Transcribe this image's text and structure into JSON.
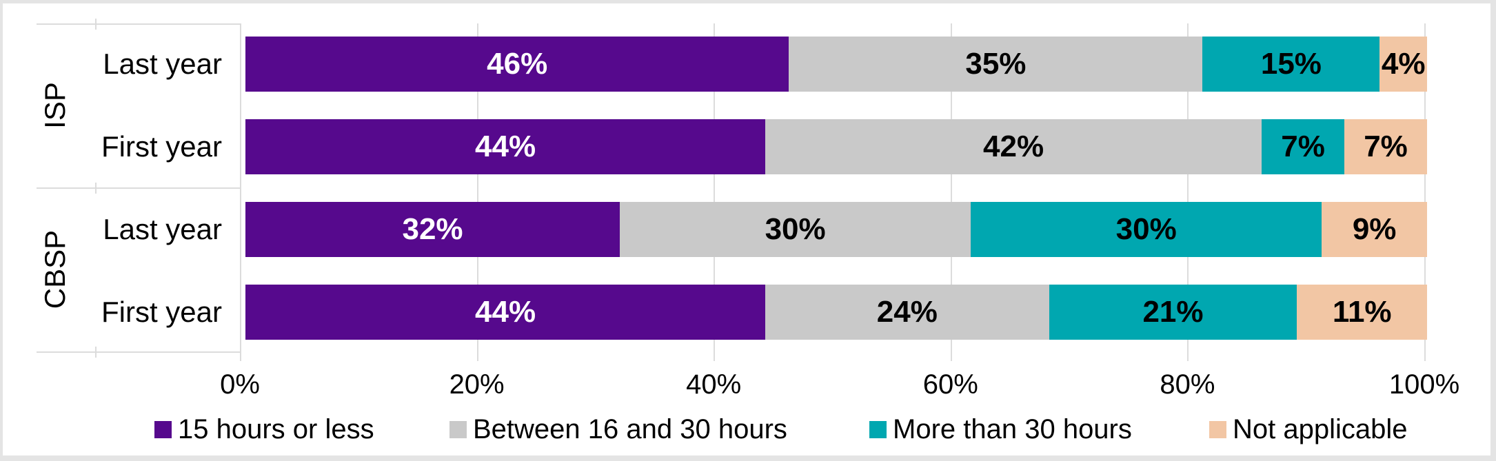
{
  "chart_data": {
    "type": "bar",
    "variant": "horizontal-stacked-100",
    "title": "",
    "xlabel": "",
    "ylabel": "",
    "x_axis": {
      "tick_labels": [
        "0%",
        "20%",
        "40%",
        "60%",
        "80%",
        "100%"
      ],
      "range": [
        0,
        100
      ],
      "gridlines": true
    },
    "legend_position": "bottom",
    "series": [
      {
        "name": "15 hours or less",
        "color": "#56098d",
        "label_color": "#ffffff"
      },
      {
        "name": "Between 16 and 30 hours",
        "color": "#c9c9c9",
        "label_color": "#000000"
      },
      {
        "name": "More than 30 hours",
        "color": "#00a7b0",
        "label_color": "#000000"
      },
      {
        "name": "Not applicable",
        "color": "#f2c6a4",
        "label_color": "#000000"
      }
    ],
    "groups": [
      {
        "label": "ISP",
        "rows": [
          {
            "label": "Last year",
            "values": [
              46,
              35,
              15,
              4
            ],
            "value_labels": [
              "46%",
              "35%",
              "15%",
              "4%"
            ]
          },
          {
            "label": "First year",
            "values": [
              44,
              42,
              7,
              7
            ],
            "value_labels": [
              "44%",
              "42%",
              "7%",
              "7%"
            ]
          }
        ]
      },
      {
        "label": "CBSP",
        "rows": [
          {
            "label": "Last year",
            "values": [
              32,
              30,
              30,
              9
            ],
            "value_labels": [
              "32%",
              "30%",
              "30%",
              "9%"
            ]
          },
          {
            "label": "First year",
            "values": [
              44,
              24,
              21,
              11
            ],
            "value_labels": [
              "44%",
              "24%",
              "21%",
              "11%"
            ]
          }
        ]
      }
    ]
  },
  "colors": {
    "background": "#ffffff",
    "outer_border": "#e4e4e4",
    "gridline": "#dcdcdc",
    "text": "#000000"
  }
}
